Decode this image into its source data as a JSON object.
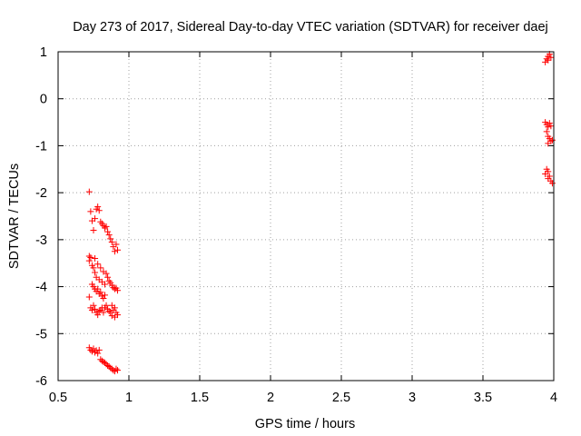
{
  "chart_data": {
    "type": "scatter",
    "title": "Day 273 of 2017, Sidereal Day-to-day VTEC variation (SDTVAR) for receiver daej",
    "xlabel": "GPS time / hours",
    "ylabel": "SDTVAR / TECUs",
    "xlim": [
      0.5,
      4.0
    ],
    "ylim": [
      -6,
      1
    ],
    "x_ticks": [
      0.5,
      1,
      1.5,
      2,
      2.5,
      3,
      3.5,
      4
    ],
    "x_tick_labels": [
      "0.5",
      "1",
      "1.5",
      "2",
      "2.5",
      "3",
      "3.5",
      "4"
    ],
    "y_ticks": [
      -6,
      -5,
      -4,
      -3,
      -2,
      -1,
      0,
      1
    ],
    "y_tick_labels": [
      "-6",
      "-5",
      "-4",
      "-3",
      "-2",
      "-1",
      "0",
      "1"
    ],
    "grid": true,
    "legend": "none",
    "marker": "plus",
    "colors": {
      "series": "#ff0000"
    },
    "series": [
      {
        "name": "SDTVAR",
        "points": [
          [
            0.72,
            -1.98
          ],
          [
            0.73,
            -2.4
          ],
          [
            0.74,
            -2.6
          ],
          [
            0.75,
            -2.8
          ],
          [
            0.76,
            -2.55
          ],
          [
            0.77,
            -2.35
          ],
          [
            0.78,
            -2.3
          ],
          [
            0.79,
            -2.38
          ],
          [
            0.8,
            -2.62
          ],
          [
            0.81,
            -2.66
          ],
          [
            0.82,
            -2.7
          ],
          [
            0.83,
            -2.75
          ],
          [
            0.84,
            -2.72
          ],
          [
            0.85,
            -2.83
          ],
          [
            0.86,
            -2.9
          ],
          [
            0.87,
            -2.98
          ],
          [
            0.88,
            -3.05
          ],
          [
            0.89,
            -3.15
          ],
          [
            0.9,
            -3.25
          ],
          [
            0.91,
            -3.1
          ],
          [
            0.92,
            -3.22
          ],
          [
            0.72,
            -3.35
          ],
          [
            0.72,
            -3.45
          ],
          [
            0.73,
            -3.38
          ],
          [
            0.74,
            -3.55
          ],
          [
            0.75,
            -3.6
          ],
          [
            0.76,
            -3.4
          ],
          [
            0.76,
            -3.7
          ],
          [
            0.77,
            -3.8
          ],
          [
            0.78,
            -3.52
          ],
          [
            0.79,
            -3.85
          ],
          [
            0.8,
            -3.6
          ],
          [
            0.81,
            -3.9
          ],
          [
            0.82,
            -3.68
          ],
          [
            0.83,
            -3.95
          ],
          [
            0.84,
            -3.72
          ],
          [
            0.85,
            -3.8
          ],
          [
            0.86,
            -3.88
          ],
          [
            0.87,
            -3.92
          ],
          [
            0.88,
            -3.97
          ],
          [
            0.89,
            -4.02
          ],
          [
            0.9,
            -4.05
          ],
          [
            0.91,
            -4.03
          ],
          [
            0.92,
            -4.08
          ],
          [
            0.74,
            -3.95
          ],
          [
            0.75,
            -4.0
          ],
          [
            0.76,
            -4.05
          ],
          [
            0.77,
            -4.1
          ],
          [
            0.78,
            -4.05
          ],
          [
            0.79,
            -4.15
          ],
          [
            0.8,
            -4.12
          ],
          [
            0.81,
            -4.2
          ],
          [
            0.82,
            -4.25
          ],
          [
            0.83,
            -4.18
          ],
          [
            0.72,
            -4.22
          ],
          [
            0.73,
            -4.45
          ],
          [
            0.74,
            -4.5
          ],
          [
            0.75,
            -4.4
          ],
          [
            0.76,
            -4.48
          ],
          [
            0.77,
            -4.55
          ],
          [
            0.78,
            -4.6
          ],
          [
            0.79,
            -4.52
          ],
          [
            0.8,
            -4.5
          ],
          [
            0.81,
            -4.45
          ],
          [
            0.82,
            -4.55
          ],
          [
            0.83,
            -4.45
          ],
          [
            0.84,
            -4.4
          ],
          [
            0.85,
            -4.48
          ],
          [
            0.86,
            -4.52
          ],
          [
            0.87,
            -4.55
          ],
          [
            0.88,
            -4.62
          ],
          [
            0.89,
            -4.5
          ],
          [
            0.9,
            -4.45
          ],
          [
            0.91,
            -4.55
          ],
          [
            0.92,
            -4.6
          ],
          [
            0.88,
            -4.4
          ],
          [
            0.9,
            -4.65
          ],
          [
            0.72,
            -5.3
          ],
          [
            0.73,
            -5.35
          ],
          [
            0.74,
            -5.38
          ],
          [
            0.75,
            -5.32
          ],
          [
            0.76,
            -5.4
          ],
          [
            0.77,
            -5.36
          ],
          [
            0.78,
            -5.42
          ],
          [
            0.79,
            -5.35
          ],
          [
            0.8,
            -5.55
          ],
          [
            0.81,
            -5.58
          ],
          [
            0.82,
            -5.6
          ],
          [
            0.83,
            -5.62
          ],
          [
            0.84,
            -5.65
          ],
          [
            0.85,
            -5.68
          ],
          [
            0.86,
            -5.7
          ],
          [
            0.87,
            -5.73
          ],
          [
            0.88,
            -5.75
          ],
          [
            0.89,
            -5.78
          ],
          [
            0.9,
            -5.8
          ],
          [
            0.91,
            -5.75
          ],
          [
            0.92,
            -5.78
          ],
          [
            3.94,
            0.78
          ],
          [
            3.95,
            0.85
          ],
          [
            3.96,
            0.9
          ],
          [
            3.97,
            0.95
          ],
          [
            3.98,
            0.88
          ],
          [
            3.96,
            0.82
          ],
          [
            3.94,
            -0.5
          ],
          [
            3.95,
            -0.55
          ],
          [
            3.96,
            -0.6
          ],
          [
            3.97,
            -0.52
          ],
          [
            3.98,
            -0.58
          ],
          [
            3.95,
            -0.7
          ],
          [
            3.96,
            -0.8
          ],
          [
            3.97,
            -0.85
          ],
          [
            3.98,
            -0.9
          ],
          [
            3.96,
            -0.95
          ],
          [
            3.99,
            -0.88
          ],
          [
            3.94,
            -1.6
          ],
          [
            3.95,
            -1.5
          ],
          [
            3.96,
            -1.55
          ],
          [
            3.97,
            -1.65
          ],
          [
            3.98,
            -1.75
          ],
          [
            3.99,
            -1.8
          ],
          [
            3.96,
            -1.7
          ]
        ]
      }
    ]
  }
}
